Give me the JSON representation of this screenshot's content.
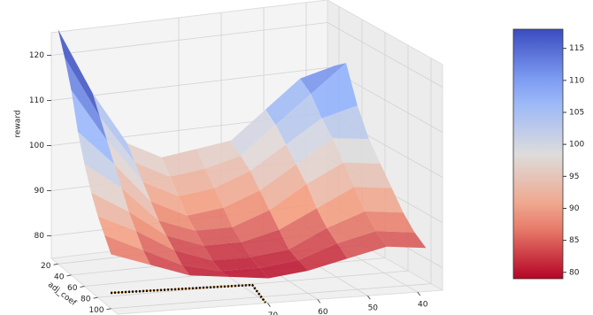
{
  "chart_data": {
    "type": "surface",
    "xlabel": "",
    "ylabel": "adj_coef",
    "zlabel": "reward",
    "x": [
      36,
      44,
      52,
      60,
      68,
      76,
      84,
      92,
      100
    ],
    "y": [
      20,
      30,
      40,
      50,
      60,
      70,
      80,
      90,
      100
    ],
    "z": [
      [
        112,
        110,
        104,
        98,
        97,
        96,
        100,
        112,
        127
      ],
      [
        114,
        108,
        102,
        96,
        94,
        93,
        97,
        108,
        122
      ],
      [
        106,
        104,
        99,
        94,
        91,
        90,
        94,
        104,
        116
      ],
      [
        100,
        101,
        96,
        91,
        88,
        87,
        91,
        100,
        108
      ],
      [
        96,
        97,
        93,
        88,
        85,
        85,
        88,
        96,
        102
      ],
      [
        92,
        93,
        89,
        85,
        83,
        83,
        86,
        92,
        97
      ],
      [
        88,
        89,
        86,
        82,
        81,
        81,
        84,
        89,
        93
      ],
      [
        85,
        86,
        84,
        81,
        80,
        80,
        82,
        86,
        90
      ],
      [
        83,
        84,
        82,
        80,
        79,
        80,
        81,
        84,
        87
      ]
    ],
    "xlim": [
      35,
      100
    ],
    "ylim": [
      10,
      110
    ],
    "zlim": [
      75,
      125
    ],
    "xticks": [
      40,
      50,
      60,
      70
    ],
    "yticks": [
      20,
      40,
      60,
      80,
      100
    ],
    "zticks": [
      80,
      90,
      100,
      110,
      120
    ],
    "colormap": "coolwarm_r",
    "clim": [
      79,
      118
    ],
    "cticks": [
      80,
      85,
      90,
      95,
      100,
      105,
      110,
      115
    ],
    "grid": true
  }
}
